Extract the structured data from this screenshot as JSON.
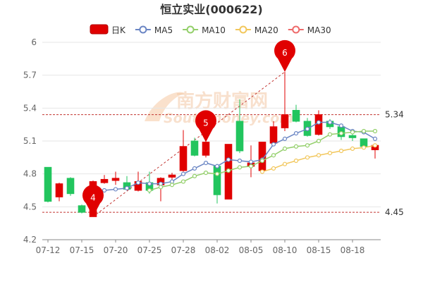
{
  "chart_data": {
    "type": "candlestick",
    "title": "恒立实业(000622)",
    "legend": [
      {
        "label": "日K",
        "kind": "candle",
        "color": "#e00000"
      },
      {
        "label": "MA5",
        "kind": "line",
        "color": "#6b86c4"
      },
      {
        "label": "MA10",
        "kind": "line",
        "color": "#93cf6a"
      },
      {
        "label": "MA20",
        "kind": "line",
        "color": "#f2c75c"
      },
      {
        "label": "MA30",
        "kind": "line",
        "color": "#ee6a6a"
      }
    ],
    "legend_position": "top-center",
    "ylim": [
      4.2,
      6.0
    ],
    "y_ticks": [
      "4.2",
      "4.5",
      "4.8",
      "5.1",
      "5.4",
      "5.7",
      "6"
    ],
    "x_tick_labels": [
      {
        "index": 0,
        "label": "07-12"
      },
      {
        "index": 3,
        "label": "07-15"
      },
      {
        "index": 6,
        "label": "07-20"
      },
      {
        "index": 9,
        "label": "07-25"
      },
      {
        "index": 12,
        "label": "07-28"
      },
      {
        "index": 15,
        "label": "08-02"
      },
      {
        "index": 18,
        "label": "08-05"
      },
      {
        "index": 21,
        "label": "08-10"
      },
      {
        "index": 24,
        "label": "08-15"
      },
      {
        "index": 27,
        "label": "08-18"
      }
    ],
    "candles": [
      {
        "open": 4.86,
        "close": 4.55,
        "high": 4.86,
        "low": 4.54
      },
      {
        "open": 4.59,
        "close": 4.71,
        "high": 4.72,
        "low": 4.55
      },
      {
        "open": 4.76,
        "close": 4.62,
        "high": 4.77,
        "low": 4.6
      },
      {
        "open": 4.51,
        "close": 4.45,
        "high": 4.52,
        "low": 4.44
      },
      {
        "open": 4.41,
        "close": 4.73,
        "high": 4.74,
        "low": 4.41
      },
      {
        "open": 4.72,
        "close": 4.75,
        "high": 4.79,
        "low": 4.71
      },
      {
        "open": 4.74,
        "close": 4.76,
        "high": 4.82,
        "low": 4.7
      },
      {
        "open": 4.72,
        "close": 4.66,
        "high": 4.78,
        "low": 4.65
      },
      {
        "open": 4.65,
        "close": 4.73,
        "high": 4.82,
        "low": 4.64
      },
      {
        "open": 4.72,
        "close": 4.65,
        "high": 4.82,
        "low": 4.62
      },
      {
        "open": 4.7,
        "close": 4.76,
        "high": 4.77,
        "low": 4.55
      },
      {
        "open": 4.77,
        "close": 4.79,
        "high": 4.81,
        "low": 4.74
      },
      {
        "open": 4.83,
        "close": 5.05,
        "high": 5.2,
        "low": 4.82
      },
      {
        "open": 5.1,
        "close": 4.97,
        "high": 5.13,
        "low": 4.96
      },
      {
        "open": 4.97,
        "close": 5.09,
        "high": 5.1,
        "low": 4.95
      },
      {
        "open": 4.87,
        "close": 4.61,
        "high": 4.89,
        "low": 4.53
      },
      {
        "open": 4.57,
        "close": 5.07,
        "high": 5.07,
        "low": 4.57
      },
      {
        "open": 5.28,
        "close": 5.01,
        "high": 5.48,
        "low": 4.99
      },
      {
        "open": 4.87,
        "close": 4.9,
        "high": 5.06,
        "low": 4.77
      },
      {
        "open": 4.83,
        "close": 5.09,
        "high": 5.09,
        "low": 4.8
      },
      {
        "open": 5.08,
        "close": 5.23,
        "high": 5.28,
        "low": 5.07
      },
      {
        "open": 5.22,
        "close": 5.34,
        "high": 5.73,
        "low": 5.19
      },
      {
        "open": 5.38,
        "close": 5.28,
        "high": 5.43,
        "low": 5.27
      },
      {
        "open": 5.28,
        "close": 5.15,
        "high": 5.31,
        "low": 5.14
      },
      {
        "open": 5.16,
        "close": 5.34,
        "high": 5.38,
        "low": 5.15
      },
      {
        "open": 5.28,
        "close": 5.23,
        "high": 5.3,
        "low": 5.21
      },
      {
        "open": 5.23,
        "close": 5.14,
        "high": 5.25,
        "low": 5.11
      },
      {
        "open": 5.15,
        "close": 5.13,
        "high": 5.16,
        "low": 5.1
      },
      {
        "open": 5.12,
        "close": 5.05,
        "high": 5.12,
        "low": 5.04
      },
      {
        "open": 5.02,
        "close": 5.06,
        "high": 5.07,
        "low": 4.94
      }
    ],
    "series": [
      {
        "name": "MA5",
        "color": "#6b86c4",
        "values": [
          null,
          null,
          null,
          null,
          4.61,
          4.65,
          4.66,
          4.67,
          4.72,
          4.71,
          4.71,
          4.73,
          4.8,
          4.85,
          4.9,
          4.87,
          4.93,
          4.92,
          4.91,
          4.93,
          5.07,
          5.12,
          5.17,
          5.21,
          5.27,
          5.27,
          5.24,
          5.19,
          5.18,
          5.12
        ]
      },
      {
        "name": "MA10",
        "color": "#93cf6a",
        "values": [
          null,
          null,
          null,
          null,
          null,
          null,
          null,
          null,
          null,
          4.65,
          4.68,
          4.7,
          4.73,
          4.78,
          4.81,
          4.8,
          4.83,
          4.86,
          4.87,
          4.92,
          4.97,
          5.03,
          5.05,
          5.06,
          5.1,
          5.16,
          5.17,
          5.18,
          5.19,
          5.19
        ]
      },
      {
        "name": "MA20",
        "color": "#f2c75c",
        "values": [
          null,
          null,
          null,
          null,
          null,
          null,
          null,
          null,
          null,
          null,
          null,
          null,
          null,
          null,
          null,
          null,
          null,
          null,
          null,
          4.82,
          4.85,
          4.89,
          4.92,
          4.95,
          4.97,
          4.99,
          5.01,
          5.03,
          5.04,
          5.06
        ]
      },
      {
        "name": "MA30",
        "color": "#ee6a6a",
        "values": []
      }
    ],
    "ref_lines": [
      {
        "value": 5.34,
        "label": "5.34"
      },
      {
        "value": 4.45,
        "label": "4.45"
      }
    ],
    "markers": [
      {
        "label": "4",
        "index": 4,
        "value": 4.41,
        "color": "#e00000"
      },
      {
        "label": "5",
        "index": 14,
        "value": 5.09,
        "color": "#e00000"
      },
      {
        "label": "6",
        "index": 21,
        "value": 5.73,
        "color": "#e00000"
      }
    ],
    "watermark": {
      "text_cn": "南方财富网",
      "text_en": "Southmoney.com"
    },
    "up_color": "#e00000",
    "down_color": "#22c55e",
    "grid": true
  }
}
